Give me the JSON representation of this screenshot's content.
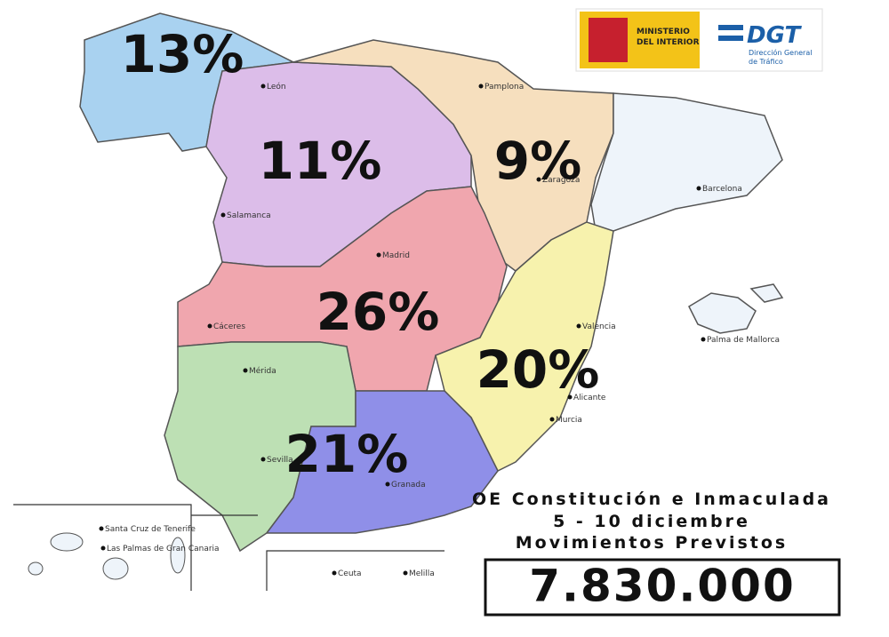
{
  "logos": {
    "ministry": {
      "lines": [
        "MINISTERIO",
        "DEL INTERIOR"
      ]
    },
    "dgt": {
      "name": "DGT",
      "lines": [
        "Dirección General",
        "de Tráfico"
      ]
    }
  },
  "regions": [
    {
      "share": "13%"
    },
    {
      "share": "11%"
    },
    {
      "share": "9%"
    },
    {
      "share": "26%"
    },
    {
      "share": "20%"
    },
    {
      "share": "21%"
    }
  ],
  "cities": [
    "Madrid",
    "Barcelona",
    "Valencia",
    "Sevilla",
    "Granada",
    "Zaragoza",
    "Salamanca",
    "Cáceres",
    "Mérida",
    "Alicante",
    "Murcia",
    "Pamplona",
    "León",
    "Ceuta",
    "Melilla",
    "Palma de Mallorca",
    "Santa Cruz de Tenerife",
    "Las Palmas de Gran Canaria"
  ],
  "info": {
    "lines": [
      "OE Constitución e Inmaculada",
      "5 - 10 diciembre",
      "Movimientos Previstos"
    ],
    "total": "7.830.000"
  }
}
